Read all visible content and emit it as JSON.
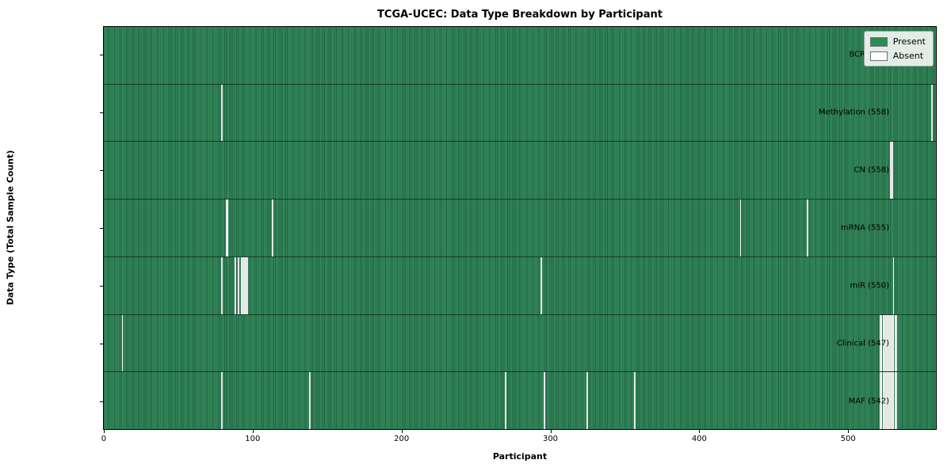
{
  "title": "TCGA-UCEC: Data Type Breakdown by Participant",
  "chart_data": {
    "type": "heatmap",
    "title": "TCGA-UCEC: Data Type Breakdown by Participant",
    "xlabel": "Participant",
    "ylabel": "Data Type (Total Sample Count)",
    "x_ticks": [
      0,
      100,
      200,
      300,
      400,
      500
    ],
    "n_participants": 560,
    "grid": false,
    "legend_position": "upper right",
    "legend": [
      {
        "label": "Present",
        "color": "#2e8b57"
      },
      {
        "label": "Absent",
        "color": "#ffffff"
      }
    ],
    "colors": {
      "present": "#2e8b57",
      "present_stripe_dark": "#1f6141",
      "present_stripe_light": "#358a5c",
      "absent": "#ffffff",
      "plot_border": "#000000"
    },
    "rows": [
      {
        "label": "BCR (560)",
        "data_type": "BCR",
        "total_samples": 560,
        "absent_participants": []
      },
      {
        "label": "Methylation (558)",
        "data_type": "Methylation",
        "total_samples": 558,
        "absent_participants": [
          79,
          557
        ]
      },
      {
        "label": "CN (558)",
        "data_type": "CN",
        "total_samples": 558,
        "absent_participants": [
          529,
          530
        ]
      },
      {
        "label": "mRNA (555)",
        "data_type": "mRNA",
        "total_samples": 555,
        "absent_participants": [
          82,
          83,
          113,
          428,
          473
        ]
      },
      {
        "label": "miR (550)",
        "data_type": "miR",
        "total_samples": 550,
        "absent_participants": [
          79,
          88,
          90,
          92,
          93,
          94,
          95,
          96,
          294,
          531
        ]
      },
      {
        "label": "Clinical (547)",
        "data_type": "Clinical",
        "total_samples": 547,
        "absent_participants": [
          12,
          522,
          523,
          524,
          525,
          526,
          527,
          528,
          529,
          530,
          531,
          532,
          533
        ]
      },
      {
        "label": "MAF (542)",
        "data_type": "MAF",
        "total_samples": 542,
        "absent_participants": [
          79,
          138,
          270,
          296,
          325,
          357,
          522,
          523,
          524,
          525,
          526,
          527,
          528,
          529,
          530,
          531,
          532,
          533
        ]
      }
    ]
  }
}
